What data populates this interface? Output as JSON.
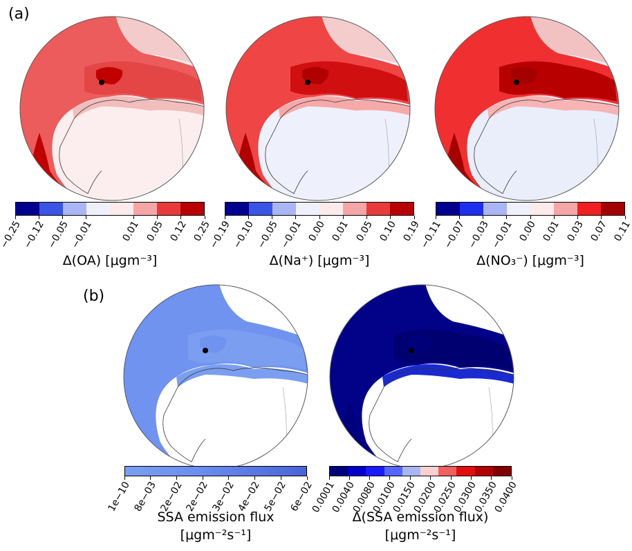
{
  "panels": {
    "a": {
      "label": "(a)"
    },
    "b": {
      "label": "(b)"
    }
  },
  "globes": [
    {
      "name": "globe-oa",
      "polar": "#ed5c5c",
      "polar_strong": "#e44545",
      "coast": "#f2bdbd",
      "ice": "#fceeee",
      "dark": "#c00000",
      "shelf": "#f3cbcb"
    },
    {
      "name": "globe-na",
      "polar": "#f04545",
      "polar_strong": "#d01010",
      "coast": "#f6a9a9",
      "ice": "#eef0fb",
      "dark": "#b00000",
      "shelf": "#f5cccc"
    },
    {
      "name": "globe-no3",
      "polar": "#f03030",
      "polar_strong": "#b80000",
      "coast": "#f8b4b4",
      "ice": "#eaeefb",
      "dark": "#a50000",
      "shelf": "#f2c2c2"
    },
    {
      "name": "globe-ssa",
      "polar": "#6f93ef",
      "polar_strong": "#7b9ef0",
      "coast": "#7b9ef0",
      "ice": "#ffffff",
      "dark": "#6f93ef",
      "shelf": "#ffffff"
    },
    {
      "name": "globe-dssa",
      "polar": "#020288",
      "polar_strong": "#000070",
      "coast": "#1a2ad0",
      "ice": "#ffffff",
      "dark": "#00007a",
      "shelf": "#ffffff"
    }
  ],
  "colorbars": {
    "oa": {
      "colors": [
        "#00008f",
        "#3a55e6",
        "#aab6f3",
        "#eef0fb",
        "#fdeaea",
        "#f5a6a6",
        "#e83a3a",
        "#b80000"
      ],
      "ticks": [
        "-0.25",
        "-0.12",
        "-0.05",
        "-0.01",
        "0.01",
        "0.05",
        "0.12",
        "0.25"
      ],
      "tick_fracs": [
        0,
        0.125,
        0.25,
        0.375,
        0.625,
        0.75,
        0.875,
        1
      ],
      "title": "Δ(OA) [μgm⁻³]"
    },
    "na": {
      "colors": [
        "#00008f",
        "#3a55e6",
        "#aab6f3",
        "#eef0fb",
        "#fdeaea",
        "#f5a6a6",
        "#e83a3a",
        "#b80000"
      ],
      "ticks": [
        "-0.19",
        "-0.10",
        "-0.05",
        "-0.01",
        "0.00",
        "0.01",
        "0.05",
        "0.10",
        "0.19"
      ],
      "tick_fracs": [
        0,
        0.125,
        0.25,
        0.375,
        0.5,
        0.625,
        0.75,
        0.875,
        1
      ],
      "title": "Δ(Na⁺) [μgm⁻³]"
    },
    "no3": {
      "colors": [
        "#00008f",
        "#1f2ff0",
        "#aab6f3",
        "#eef0fb",
        "#fdeaea",
        "#f5a6a6",
        "#f02020",
        "#a50000"
      ],
      "ticks": [
        "-0.11",
        "-0.07",
        "-0.03",
        "-0.01",
        "0.00",
        "0.01",
        "0.03",
        "0.07",
        "0.11"
      ],
      "tick_fracs": [
        0,
        0.125,
        0.25,
        0.375,
        0.5,
        0.625,
        0.75,
        0.875,
        1
      ],
      "title": "Δ(NO₃⁻) [μgm⁻³]"
    },
    "ssa": {
      "ticks": [
        "1e-10",
        "8e-03",
        "2e-02",
        "2e-02",
        "3e-02",
        "4e-02",
        "5e-02",
        "6e-02"
      ],
      "tick_fracs": [
        0,
        0.143,
        0.286,
        0.429,
        0.571,
        0.714,
        0.857,
        1
      ],
      "title": "SSA emission flux",
      "unit": "[μgm⁻²s⁻¹]"
    },
    "dssa": {
      "colors": [
        "#00007a",
        "#0000c8",
        "#1a1aff",
        "#5566ff",
        "#aab6f3",
        "#fbd0d0",
        "#f06060",
        "#e01010",
        "#b00000",
        "#800000"
      ],
      "ticks": [
        "0.0001",
        "0.0040",
        "0.0080",
        "0.0100",
        "0.0150",
        "0.0200",
        "0.0250",
        "0.0300",
        "0.0350",
        "0.0400"
      ],
      "tick_fracs": [
        0,
        0.111,
        0.222,
        0.333,
        0.444,
        0.556,
        0.667,
        0.778,
        0.889,
        1
      ],
      "title": "Δ(SSA emission flux)",
      "unit": "[μgm⁻²s⁻¹]"
    }
  }
}
